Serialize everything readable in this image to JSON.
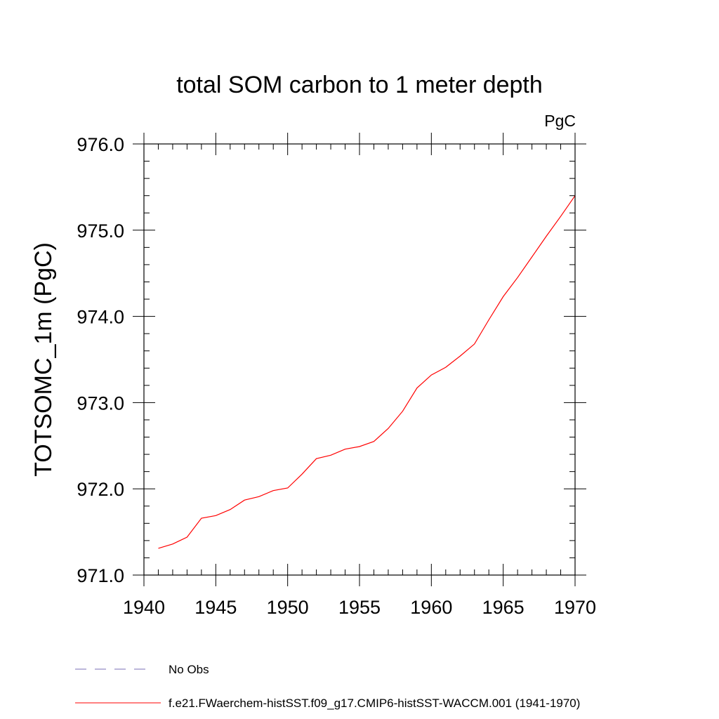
{
  "chart_data": {
    "type": "line",
    "title": "total SOM carbon to 1 meter depth",
    "units_label": "PgC",
    "xlabel": "",
    "ylabel": "TOTSOMC_1m  (PgC)",
    "xlim": [
      1940,
      1970
    ],
    "ylim": [
      971.0,
      976.0
    ],
    "x_ticks": [
      "1940",
      "1945",
      "1950",
      "1955",
      "1960",
      "1965",
      "1970"
    ],
    "y_ticks": [
      "971.0",
      "972.0",
      "973.0",
      "974.0",
      "975.0",
      "976.0"
    ],
    "grid": false,
    "legend_position": "bottom",
    "x": [
      1941,
      1942,
      1943,
      1944,
      1945,
      1946,
      1947,
      1948,
      1949,
      1950,
      1951,
      1952,
      1953,
      1954,
      1955,
      1956,
      1957,
      1958,
      1959,
      1960,
      1961,
      1962,
      1963,
      1964,
      1965,
      1966,
      1967,
      1968,
      1969,
      1970
    ],
    "series": [
      {
        "name": "f.e21.FWaerchem-histSST.f09_g17.CMIP6-histSST-WACCM.001 (1941-1970)",
        "color": "#ff0000",
        "style": "solid",
        "values": [
          971.31,
          971.36,
          971.44,
          971.66,
          971.69,
          971.76,
          971.87,
          971.91,
          971.98,
          972.01,
          972.17,
          972.35,
          972.39,
          972.46,
          972.49,
          972.55,
          972.7,
          972.9,
          973.17,
          973.32,
          973.41,
          973.54,
          973.68,
          973.96,
          974.23,
          974.45,
          974.69,
          974.93,
          975.16,
          975.4
        ]
      }
    ],
    "legend": [
      {
        "label": "No Obs",
        "color": "#7a6fb4",
        "style": "dashed"
      },
      {
        "label": "f.e21.FWaerchem-histSST.f09_g17.CMIP6-histSST-WACCM.001 (1941-1970)",
        "color": "#ff0000",
        "style": "solid"
      }
    ]
  }
}
